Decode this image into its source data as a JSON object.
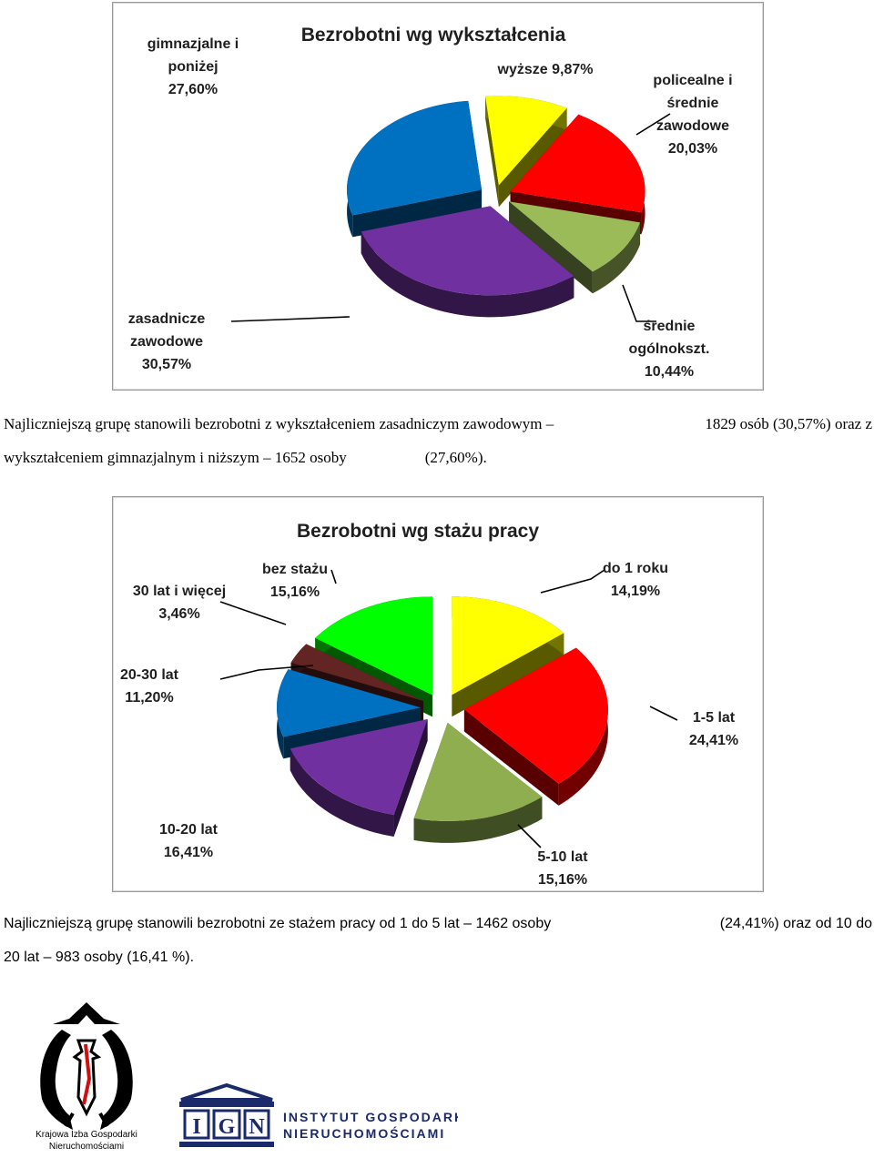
{
  "chart_data": [
    {
      "type": "pie",
      "title": "Bezrobotni wg wykształcenia",
      "slices": [
        {
          "label": "wyższe",
          "value": 9.87,
          "text": "wyższe 9,87%",
          "color": "#ffff00"
        },
        {
          "label": "policealne i średnie zawodowe",
          "value": 20.03,
          "text": [
            "policealne i",
            "średnie",
            "zawodowe",
            "20,03%"
          ],
          "color": "#ff0000"
        },
        {
          "label": "średnie ogólnokszt.",
          "value": 10.44,
          "text": [
            "średnie",
            "ogólnokszt.",
            "10,44%"
          ],
          "color": "#9bbb59"
        },
        {
          "label": "zasadnicze zawodowe",
          "value": 30.57,
          "text": [
            "zasadnicze",
            "zawodowe",
            "30,57%"
          ],
          "color": "#7030a0"
        },
        {
          "label": "gimnazjalne i poniżej",
          "value": 27.6,
          "text": [
            "gimnazjalne i",
            "poniżej",
            "27,60%"
          ],
          "color": "#0070c0"
        }
      ]
    },
    {
      "type": "pie",
      "title": "Bezrobotni wg stażu pracy",
      "slices": [
        {
          "label": "do 1 roku",
          "value": 14.19,
          "text": [
            "do 1 roku",
            "14,19%"
          ],
          "color": "#ffff00"
        },
        {
          "label": "1-5 lat",
          "value": 24.41,
          "text": [
            "1-5 lat",
            "24,41%"
          ],
          "color": "#ff0000"
        },
        {
          "label": "5-10 lat",
          "value": 15.16,
          "text": [
            "5-10 lat",
            "15,16%"
          ],
          "color": "#8fae4f"
        },
        {
          "label": "10-20 lat",
          "value": 16.41,
          "text": [
            "10-20 lat",
            "16,41%"
          ],
          "color": "#7030a0"
        },
        {
          "label": "20-30 lat",
          "value": 11.2,
          "text": [
            "20-30 lat",
            "11,20%"
          ],
          "color": "#0070c0"
        },
        {
          "label": "30 lat i więcej",
          "value": 3.46,
          "text": [
            "30 lat i więcej",
            "3,46%"
          ],
          "color": "#632523"
        },
        {
          "label": "bez stażu",
          "value": 15.16,
          "text": [
            "bez stażu",
            "15,16%"
          ],
          "color": "#00ff00"
        }
      ]
    }
  ],
  "paragraph1": {
    "line1_left": "Najliczniejszą grupę stanowili bezrobotni z wykształceniem zasadniczym zawodowym –",
    "line1_right": "1829 osób (30,57%) oraz z",
    "line2_left": "wykształceniem gimnazjalnym i niższym – 1652 osoby",
    "line2_right": "(27,60%)."
  },
  "paragraph2": {
    "line1_left": "Najliczniejszą grupę stanowili bezrobotni ze stażem pracy od 1 do 5 lat – 1462 osoby",
    "line1_right": "(24,41%) oraz od 10 do",
    "line2": "20 lat – 983 osoby (16,41 %)."
  },
  "logos": {
    "kign_line1": "Krajowa Izba Gospodarki",
    "kign_line2": "Nieruchomościami",
    "ign_letters": [
      "I",
      "G",
      "N"
    ],
    "ign_line1": "Instytut Gospodarki",
    "ign_line2": "Nieruchomościami"
  }
}
